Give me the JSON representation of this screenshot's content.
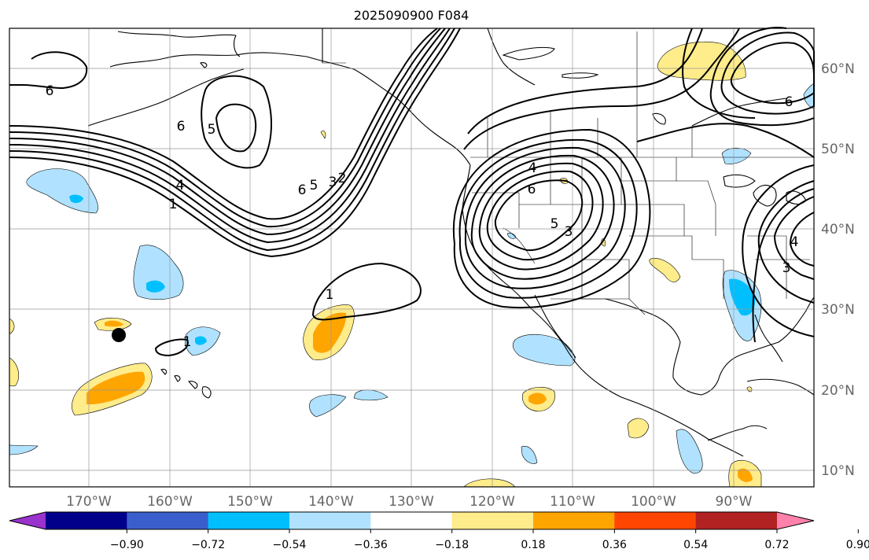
{
  "title": "2025090900 F084",
  "longitude_labels": [
    "170°W",
    "160°W",
    "150°W",
    "140°W",
    "130°W",
    "120°W",
    "110°W",
    "100°W",
    "90°W"
  ],
  "latitude_labels": [
    "60°N",
    "50°N",
    "40°N",
    "30°N",
    "20°N",
    "10°N"
  ],
  "contour_labels": [
    "6",
    "6",
    "5",
    "4",
    "1",
    "6",
    "5",
    "3",
    "2",
    "1",
    "1",
    "4",
    "6",
    "5",
    "3",
    "6",
    "4",
    "3"
  ],
  "colorbar": {
    "tick_labels": [
      "−0.90",
      "−0.72",
      "−0.54",
      "−0.36",
      "−0.18",
      "0.18",
      "0.36",
      "0.54",
      "0.72",
      "0.90"
    ],
    "colors": [
      "#9a32cd",
      "#00008b",
      "#3a5fcd",
      "#00bfff",
      "#b0e2ff",
      "#ffffff",
      "#ffec8b",
      "#ffa500",
      "#ff4500",
      "#b22222",
      "#ff82ab"
    ]
  },
  "fill_colors": {
    "light_blue": "#b0e2ff",
    "blue": "#00bfff",
    "light_yellow": "#ffec8b",
    "orange": "#ffa500"
  },
  "marker": "station-dot"
}
